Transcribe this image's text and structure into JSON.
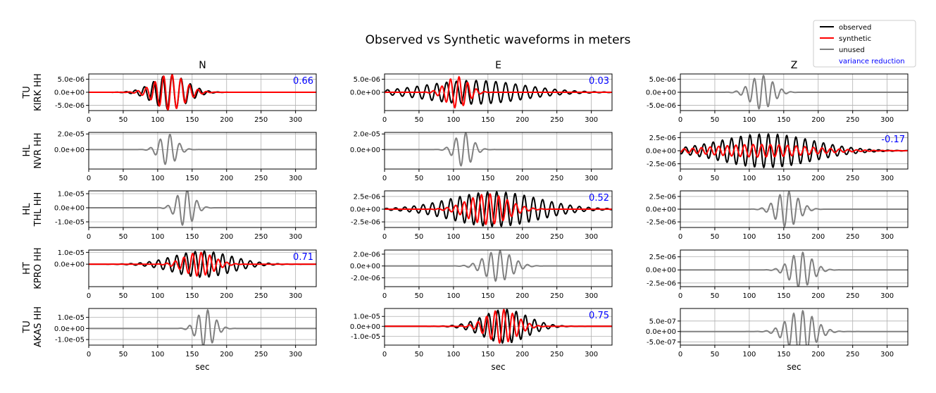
{
  "title": "Observed vs Synthetic waveforms in meters",
  "columns": [
    "N",
    "E",
    "Z"
  ],
  "xlabel": "sec",
  "xticks": [
    "0",
    "50",
    "100",
    "150",
    "200",
    "250",
    "300"
  ],
  "legend": {
    "placement": "top-right",
    "items": [
      {
        "label": "observed",
        "color": "#000000",
        "kind": "line"
      },
      {
        "label": "synthetic",
        "color": "#ff0000",
        "kind": "line"
      },
      {
        "label": "unused",
        "color": "#808080",
        "kind": "line"
      },
      {
        "label": "variance reduction",
        "color": "#0000ff",
        "kind": "text"
      }
    ]
  },
  "colors": {
    "observed": "#000000",
    "synthetic": "#ff0000",
    "unused": "#808080",
    "vr": "#0000ff",
    "grid": "#b0b0b0"
  },
  "stations": [
    {
      "label_top": "TU",
      "label_bottom": "KIRK HH"
    },
    {
      "label_top": "HL",
      "label_bottom": "NVR HH"
    },
    {
      "label_top": "HL",
      "label_bottom": "THL HH"
    },
    {
      "label_top": "HT",
      "label_bottom": "KPRO HH"
    },
    {
      "label_top": "TU",
      "label_bottom": "AKAS HH"
    }
  ],
  "chart_data": {
    "type": "line",
    "xlim": [
      0,
      330
    ],
    "grid": true,
    "panels": [
      [
        {
          "status": "used",
          "vr": "0.66",
          "ylim": [
            -7e-06,
            7e-06
          ],
          "yticks": [
            {
              "v": 5e-06,
              "label": "5.0e-06"
            },
            {
              "v": 0,
              "label": "0.0e+00"
            },
            {
              "v": -5e-06,
              "label": "-5.0e-06"
            }
          ],
          "obs": {
            "peak": 6.5e-06,
            "center": 118,
            "width": 70,
            "freq": 0.075
          },
          "syn": {
            "peak": 6.8e-06,
            "center": 118,
            "width": 60,
            "freq": 0.08
          }
        },
        {
          "status": "used",
          "vr": "0.03",
          "ylim": [
            -7e-06,
            7e-06
          ],
          "yticks": [
            {
              "v": 5e-06,
              "label": "5.0e-06"
            },
            {
              "v": 0,
              "label": "0.0e+00"
            }
          ],
          "obs": {
            "peak": 4.5e-06,
            "center": 130,
            "width": 200,
            "freq": 0.07
          },
          "syn": {
            "peak": 6e-06,
            "center": 105,
            "width": 45,
            "freq": 0.08
          }
        },
        {
          "status": "unused",
          "vr": "",
          "ylim": [
            -7e-06,
            7e-06
          ],
          "yticks": [
            {
              "v": 5e-06,
              "label": "5.0e-06"
            },
            {
              "v": 0,
              "label": "0.0e+00"
            },
            {
              "v": -5e-06,
              "label": "-5.0e-06"
            }
          ],
          "obs": {
            "peak": 6.5e-06,
            "center": 118,
            "width": 45,
            "freq": 0.075
          }
        }
      ],
      [
        {
          "status": "unused",
          "vr": "",
          "ylim": [
            -2.5e-05,
            2.2e-05
          ],
          "yticks": [
            {
              "v": 2e-05,
              "label": "2.0e-05"
            },
            {
              "v": 0,
              "label": "0.0e+00"
            }
          ],
          "obs": {
            "peak": 2e-05,
            "center": 115,
            "width": 35,
            "freq": 0.07
          }
        },
        {
          "status": "unused",
          "vr": "",
          "ylim": [
            -2.5e-05,
            2.2e-05
          ],
          "yticks": [
            {
              "v": 2e-05,
              "label": "2.0e-05"
            },
            {
              "v": 0,
              "label": "0.0e+00"
            }
          ],
          "obs": {
            "peak": 2.2e-05,
            "center": 115,
            "width": 35,
            "freq": 0.07
          }
        },
        {
          "status": "used",
          "vr": "-0.17",
          "ylim": [
            -3.5e-06,
            3.5e-06
          ],
          "yticks": [
            {
              "v": 2.5e-06,
              "label": "2.5e-06"
            },
            {
              "v": 0,
              "label": "0.0e+00"
            },
            {
              "v": -2.5e-06,
              "label": "-2.5e-06"
            }
          ],
          "obs": {
            "peak": 3.2e-06,
            "center": 125,
            "width": 190,
            "freq": 0.075
          },
          "syn": {
            "peak": 1.2e-06,
            "center": 115,
            "width": 200,
            "freq": 0.08
          }
        }
      ],
      [
        {
          "status": "unused",
          "vr": "",
          "ylim": [
            -1.4e-05,
            1.2e-05
          ],
          "yticks": [
            {
              "v": 1e-05,
              "label": "1.0e-05"
            },
            {
              "v": 0,
              "label": "0.0e+00"
            },
            {
              "v": -1e-05,
              "label": "-1.0e-05"
            }
          ],
          "obs": {
            "peak": 1.3e-05,
            "center": 140,
            "width": 35,
            "freq": 0.07
          }
        },
        {
          "status": "used",
          "vr": "0.52",
          "ylim": [
            -3.6e-06,
            3.6e-06
          ],
          "yticks": [
            {
              "v": 2.5e-06,
              "label": "2.5e-06"
            },
            {
              "v": 0,
              "label": "0.0e+00"
            },
            {
              "v": -2.5e-06,
              "label": "-2.5e-06"
            }
          ],
          "obs": {
            "peak": 3.4e-06,
            "center": 160,
            "width": 180,
            "freq": 0.075
          },
          "syn": {
            "peak": 3e-06,
            "center": 150,
            "width": 80,
            "freq": 0.08
          }
        },
        {
          "status": "unused",
          "vr": "",
          "ylim": [
            -3.6e-06,
            3.6e-06
          ],
          "yticks": [
            {
              "v": 2.5e-06,
              "label": "2.5e-06"
            },
            {
              "v": 0,
              "label": "0.0e+00"
            },
            {
              "v": -2.5e-06,
              "label": "-2.5e-06"
            }
          ],
          "obs": {
            "peak": 3.5e-06,
            "center": 155,
            "width": 45,
            "freq": 0.075
          }
        }
      ],
      [
        {
          "status": "used",
          "vr": "0.71",
          "ylim": [
            -1.9e-05,
            1.2e-05
          ],
          "yticks": [
            {
              "v": 1e-05,
              "label": "1.0e-05"
            },
            {
              "v": 0,
              "label": "0.0e+00"
            }
          ],
          "obs": {
            "peak": 1.1e-05,
            "center": 165,
            "width": 120,
            "freq": 0.075
          },
          "syn": {
            "peak": 1e-05,
            "center": 160,
            "width": 60,
            "freq": 0.08
          }
        },
        {
          "status": "unused",
          "vr": "",
          "ylim": [
            -3.5e-06,
            2.7e-06
          ],
          "yticks": [
            {
              "v": 2e-06,
              "label": "2.0e-06"
            },
            {
              "v": 0,
              "label": "0.0e+00"
            },
            {
              "v": -2e-06,
              "label": "-2.0e-06"
            }
          ],
          "obs": {
            "peak": 2.6e-06,
            "center": 165,
            "width": 55,
            "freq": 0.075
          }
        },
        {
          "status": "unused",
          "vr": "",
          "ylim": [
            -3.2e-06,
            3.8e-06
          ],
          "yticks": [
            {
              "v": 2.5e-06,
              "label": "2.5e-06"
            },
            {
              "v": 0,
              "label": "0.0e+00"
            },
            {
              "v": -2.5e-06,
              "label": "-2.5e-06"
            }
          ],
          "obs": {
            "peak": 3.4e-06,
            "center": 175,
            "width": 45,
            "freq": 0.075
          }
        }
      ],
      [
        {
          "status": "unused",
          "vr": "",
          "ylim": [
            -1.5e-05,
            1.8e-05
          ],
          "yticks": [
            {
              "v": 1e-05,
              "label": "1.0e-05"
            },
            {
              "v": 0,
              "label": "0.0e+00"
            },
            {
              "v": -1e-05,
              "label": "-1.0e-05"
            }
          ],
          "obs": {
            "peak": 1.7e-05,
            "center": 170,
            "width": 35,
            "freq": 0.075
          }
        },
        {
          "status": "used",
          "vr": "0.75",
          "ylim": [
            -1.9e-05,
            1.8e-05
          ],
          "yticks": [
            {
              "v": 1e-05,
              "label": "1.0e-05"
            },
            {
              "v": 0,
              "label": "0.0e+00"
            },
            {
              "v": -1e-05,
              "label": "-1.0e-05"
            }
          ],
          "obs": {
            "peak": 1.7e-05,
            "center": 175,
            "width": 90,
            "freq": 0.075
          },
          "syn": {
            "peak": 1.7e-05,
            "center": 170,
            "width": 60,
            "freq": 0.08
          }
        },
        {
          "status": "unused",
          "vr": "",
          "ylim": [
            -6.5e-07,
            1.1e-06
          ],
          "yticks": [
            {
              "v": 5e-07,
              "label": "5.0e-07"
            },
            {
              "v": 0,
              "label": "0.0e+00"
            },
            {
              "v": -5e-07,
              "label": "-5.0e-07"
            }
          ],
          "obs": {
            "peak": 1e-06,
            "center": 175,
            "width": 55,
            "freq": 0.075
          }
        }
      ]
    ]
  }
}
